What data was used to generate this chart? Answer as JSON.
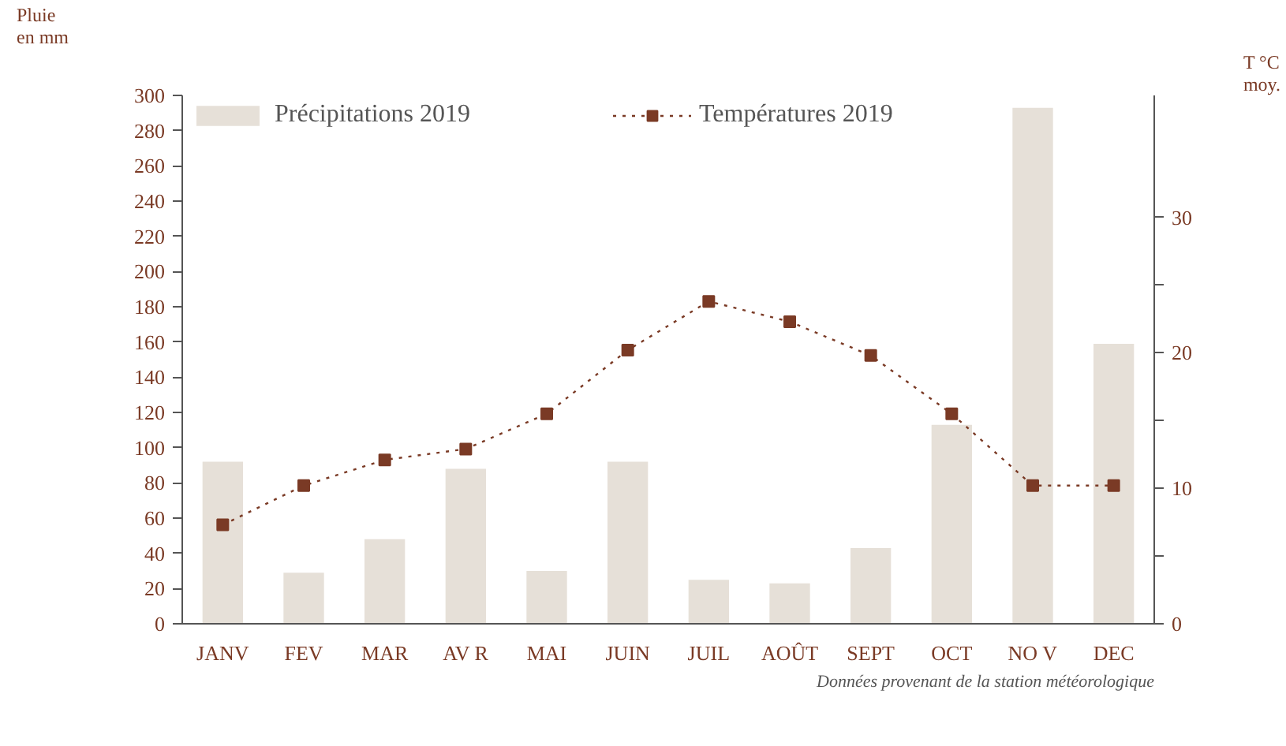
{
  "chart_data": {
    "type": "bar",
    "categories": [
      "JANV",
      "FEV",
      "MAR",
      "AV R",
      "MAI",
      "JUIN",
      "JUIL",
      "AOÛT",
      "SEPT",
      "OCT",
      "NO V",
      "DEC"
    ],
    "ylabel": "Pluie\nen mm",
    "y2label": "T °C\nmoy.",
    "ylim": [
      0,
      300
    ],
    "yticks": [
      0,
      20,
      40,
      60,
      80,
      100,
      120,
      140,
      160,
      180,
      200,
      220,
      240,
      260,
      280,
      300
    ],
    "y2lim": [
      0,
      39
    ],
    "y2ticks": [
      0,
      {
        "value": 5,
        "label": null
      },
      10,
      {
        "value": 15,
        "label": null
      },
      20,
      {
        "value": 25,
        "label": null
      },
      30
    ],
    "series": [
      {
        "name": "Précipitations 2019",
        "color": "#e6e0d8",
        "values": [
          92,
          29,
          48,
          88,
          30,
          92,
          25,
          23,
          43,
          113,
          293,
          159
        ]
      },
      {
        "name": "Températures 2019",
        "type": "line",
        "axis": "y2",
        "color": "#7a3a25",
        "marker": "square",
        "line_style": "dotted",
        "values": [
          7.3,
          10.2,
          12.1,
          12.9,
          15.5,
          20.2,
          23.8,
          22.3,
          19.8,
          15.5,
          10.2,
          10.2
        ]
      }
    ],
    "legend": "top left",
    "grid": false,
    "annotations": [
      "Données provenant de la station météorologique"
    ]
  }
}
